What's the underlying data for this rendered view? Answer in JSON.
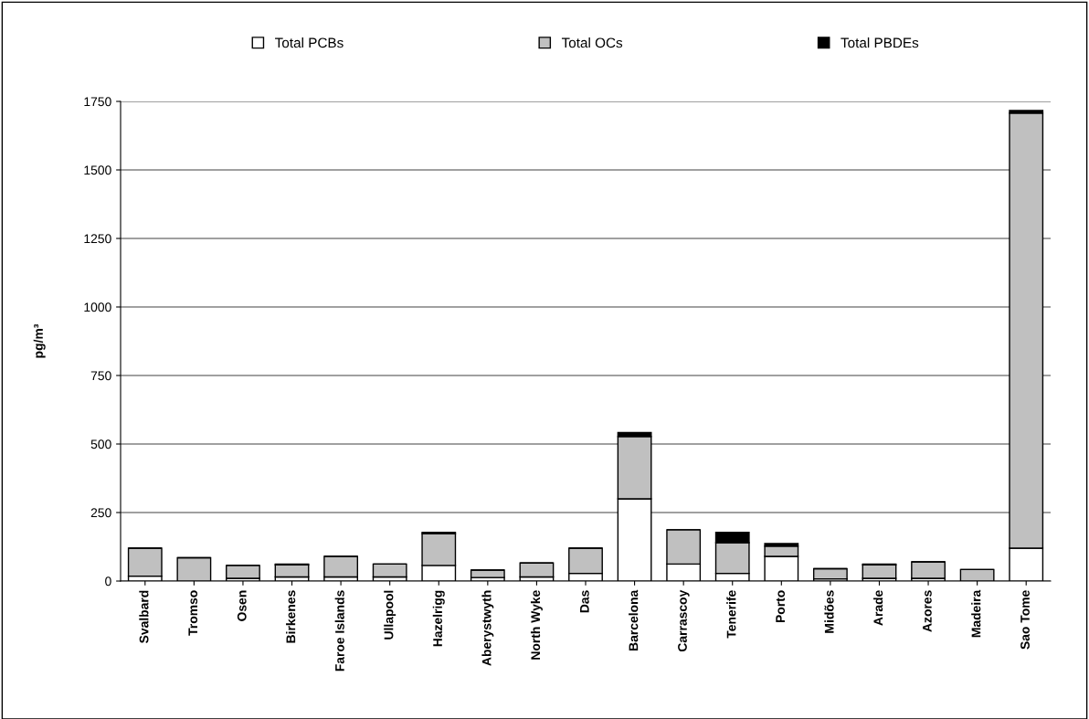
{
  "chart_data": {
    "type": "bar",
    "stacked": true,
    "ylabel": "pg/m³",
    "categories": [
      "Svalbard",
      "Tromso",
      "Osen",
      "Birkenes",
      "Faroe Islands",
      "Ullapool",
      "Hazelrigg",
      "Aberystwyth",
      "North Wyke",
      "Das",
      "Barcelona",
      "Carrascoy",
      "Tenerife",
      "Porto",
      "Midões",
      "Arade",
      "Azores",
      "Madeira",
      "Sao Tome"
    ],
    "series": [
      {
        "name": "Total PCBs",
        "color": "#ffffff",
        "values": [
          18,
          null,
          10,
          15,
          15,
          15,
          57,
          13,
          15,
          28,
          300,
          62,
          28,
          90,
          8,
          10,
          10,
          null,
          120
        ]
      },
      {
        "name": "Total OCs",
        "color": "#c0c0c0",
        "values": [
          102,
          85,
          47,
          44,
          75,
          47,
          116,
          27,
          51,
          92,
          227,
          125,
          112,
          37,
          37,
          49,
          60,
          42,
          1587
        ]
      },
      {
        "name": "Total PBDEs",
        "color": "#000000",
        "values": [
          0,
          0,
          0,
          3,
          0,
          0,
          5,
          0,
          0,
          0,
          15,
          0,
          38,
          10,
          0,
          3,
          0,
          0,
          10
        ]
      }
    ],
    "ylim": [
      0,
      1750
    ],
    "yticks": [
      0,
      250,
      500,
      750,
      1000,
      1250,
      1500,
      1750
    ],
    "grid": "y",
    "legend": "top"
  }
}
